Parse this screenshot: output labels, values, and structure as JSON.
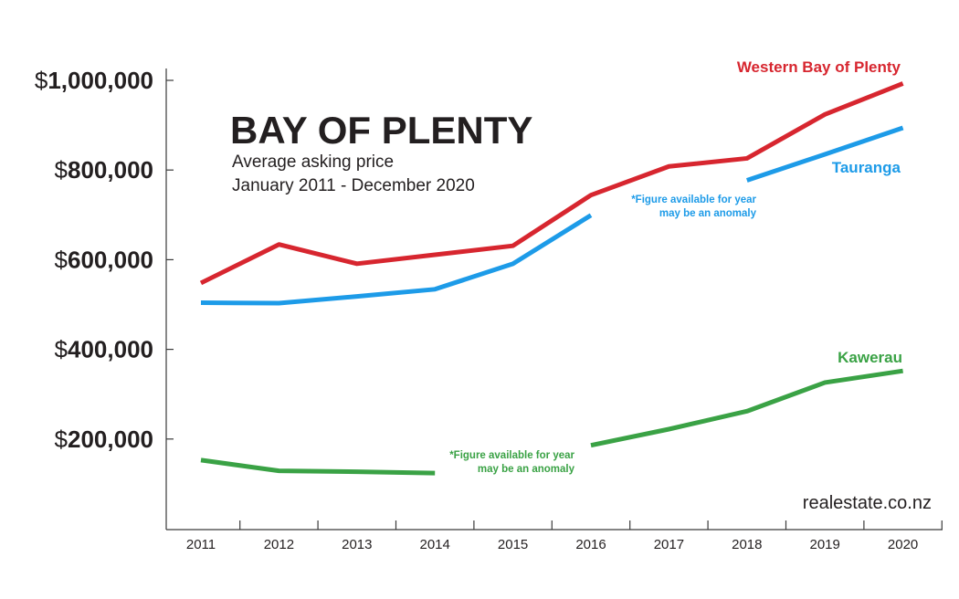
{
  "chart_data": {
    "type": "line",
    "title": "BAY OF PLENTY",
    "subtitle_lines": [
      "Average asking price",
      "January 2011 - December 2020"
    ],
    "xlabel": "",
    "ylabel": "",
    "categories": [
      "2011",
      "2012",
      "2013",
      "2014",
      "2015",
      "2016",
      "2017",
      "2018",
      "2019",
      "2020"
    ],
    "ylim": [
      0,
      1000000
    ],
    "y_ticks": [
      {
        "value": 200000,
        "prefix": "$",
        "label": "200,000"
      },
      {
        "value": 400000,
        "prefix": "$",
        "label": "400,000"
      },
      {
        "value": 600000,
        "prefix": "$",
        "label": "600,000"
      },
      {
        "value": 800000,
        "prefix": "$",
        "label": "800,000"
      },
      {
        "value": 1000000,
        "prefix": "$",
        "label": "1,000,000"
      }
    ],
    "grid": false,
    "series": [
      {
        "name": "Western Bay of Plenty",
        "color": "#d7262f",
        "segments": [
          [
            {
              "x": "2011",
              "y": 548000
            },
            {
              "x": "2012",
              "y": 634000
            },
            {
              "x": "2013",
              "y": 591000
            },
            {
              "x": "2014",
              "y": 611000
            },
            {
              "x": "2015",
              "y": 631000
            },
            {
              "x": "2016",
              "y": 744000
            },
            {
              "x": "2017",
              "y": 808000
            },
            {
              "x": "2018",
              "y": 826000
            },
            {
              "x": "2019",
              "y": 924000
            },
            {
              "x": "2020",
              "y": 993000
            }
          ]
        ]
      },
      {
        "name": "Tauranga",
        "color": "#1d9be8",
        "segments": [
          [
            {
              "x": "2011",
              "y": 504000
            },
            {
              "x": "2012",
              "y": 503000
            },
            {
              "x": "2013",
              "y": 518000
            },
            {
              "x": "2014",
              "y": 534000
            },
            {
              "x": "2015",
              "y": 591000
            },
            {
              "x": "2016",
              "y": 699000
            }
          ],
          [
            {
              "x": "2018",
              "y": 777000
            },
            {
              "x": "2019",
              "y": 835000
            },
            {
              "x": "2020",
              "y": 894000
            }
          ]
        ],
        "annotation": [
          "*Figure available for year",
          "may be an anomaly"
        ]
      },
      {
        "name": "Kawerau",
        "color": "#3aa245",
        "segments": [
          [
            {
              "x": "2011",
              "y": 153000
            },
            {
              "x": "2012",
              "y": 129000
            },
            {
              "x": "2013",
              "y": 127000
            },
            {
              "x": "2014",
              "y": 124000
            }
          ],
          [
            {
              "x": "2016",
              "y": 186000
            },
            {
              "x": "2017",
              "y": 222000
            },
            {
              "x": "2018",
              "y": 262000
            },
            {
              "x": "2019",
              "y": 326000
            },
            {
              "x": "2020",
              "y": 352000
            }
          ]
        ],
        "annotation": [
          "*Figure available for year",
          "may be an anomaly"
        ]
      }
    ]
  },
  "source": "realestate.co.nz"
}
